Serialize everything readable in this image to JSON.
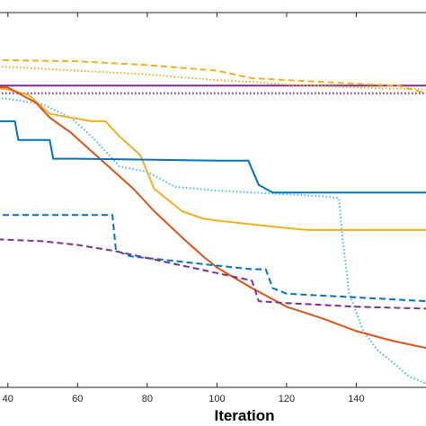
{
  "chart_data": {
    "type": "line",
    "title": "",
    "xlabel": "Iteration",
    "ylabel": "",
    "xlim": [
      30,
      160
    ],
    "ylim": [
      0,
      100
    ],
    "grid": false,
    "x_ticks": [
      40,
      60,
      80,
      100,
      120,
      140
    ],
    "x_tick_labels": [
      "40",
      "60",
      "80",
      "100",
      "120",
      "140"
    ],
    "series": [
      {
        "color": "#7E2F8E",
        "style": "solid",
        "x": [
          30,
          160
        ],
        "y": [
          80.5,
          80.5
        ]
      },
      {
        "color": "#7E2F8E",
        "style": "dotted",
        "x": [
          30,
          160
        ],
        "y": [
          78.5,
          78.5
        ]
      },
      {
        "color": "#EDB120",
        "style": "dashed",
        "x": [
          30,
          40,
          60,
          80,
          100,
          110,
          120,
          140,
          152,
          160
        ],
        "y": [
          87.5,
          87.3,
          87,
          86,
          84.5,
          82.5,
          82,
          81,
          80.5,
          78.5
        ]
      },
      {
        "color": "#EDB120",
        "style": "dotted",
        "x": [
          30,
          40,
          60,
          80,
          100,
          110,
          120,
          140,
          160
        ],
        "y": [
          86,
          85.5,
          84.5,
          83.5,
          82,
          81.5,
          80.8,
          80,
          79.5
        ]
      },
      {
        "color": "#4DBEEE",
        "style": "dotted",
        "x": [
          30,
          40,
          50,
          58,
          64,
          68,
          72,
          80,
          88,
          100,
          110,
          120,
          130,
          135,
          136,
          138,
          142,
          146,
          150,
          155,
          160
        ],
        "y": [
          77.5,
          77,
          75.5,
          72,
          67,
          63,
          59,
          57.5,
          53.5,
          52.5,
          52,
          51.5,
          51,
          50.5,
          40,
          25,
          15,
          10,
          7,
          3,
          1
        ]
      },
      {
        "color": "#EDB120",
        "style": "solid",
        "x": [
          30,
          40,
          46,
          52,
          58,
          64,
          68,
          72,
          78,
          82,
          86,
          90,
          96,
          100,
          110,
          120,
          126,
          140,
          160
        ],
        "y": [
          80.5,
          79.5,
          78,
          73,
          72,
          71,
          71,
          67,
          62,
          53,
          50,
          47,
          45,
          44.5,
          43.5,
          42.5,
          42,
          42,
          42
        ]
      },
      {
        "color": "#D95319",
        "style": "solid",
        "x": [
          30,
          40,
          48,
          52,
          58,
          64,
          70,
          76,
          82,
          90,
          96,
          100,
          110,
          120,
          130,
          140,
          150,
          160
        ],
        "y": [
          80.5,
          80,
          76,
          72,
          68,
          63,
          58,
          53,
          47,
          40,
          35,
          32,
          26.5,
          21.5,
          18.5,
          15,
          12.5,
          10.5
        ]
      },
      {
        "color": "#0072BD",
        "style": "solid",
        "x": [
          30,
          42,
          43,
          52,
          53,
          60,
          100,
          109,
          112,
          116,
          120,
          140,
          160
        ],
        "y": [
          71,
          71,
          66,
          66,
          61,
          61,
          60.5,
          60.5,
          54,
          52,
          52,
          52,
          52
        ]
      },
      {
        "color": "#0072BD",
        "style": "dashed",
        "x": [
          30,
          70,
          71,
          75,
          80,
          100,
          110,
          114,
          116,
          120,
          140,
          160
        ],
        "y": [
          46,
          46,
          36.5,
          35,
          34.5,
          32.5,
          31.5,
          31.5,
          26.5,
          25,
          24,
          23
        ]
      },
      {
        "color": "#7E2F8E",
        "style": "dashed",
        "x": [
          30,
          35,
          37,
          50,
          60,
          70,
          80,
          100,
          110,
          112,
          120,
          140,
          160
        ],
        "y": [
          45,
          45,
          39.5,
          39,
          38,
          36.5,
          34.5,
          30.5,
          28.5,
          23,
          22.5,
          21.5,
          21
        ]
      }
    ]
  }
}
